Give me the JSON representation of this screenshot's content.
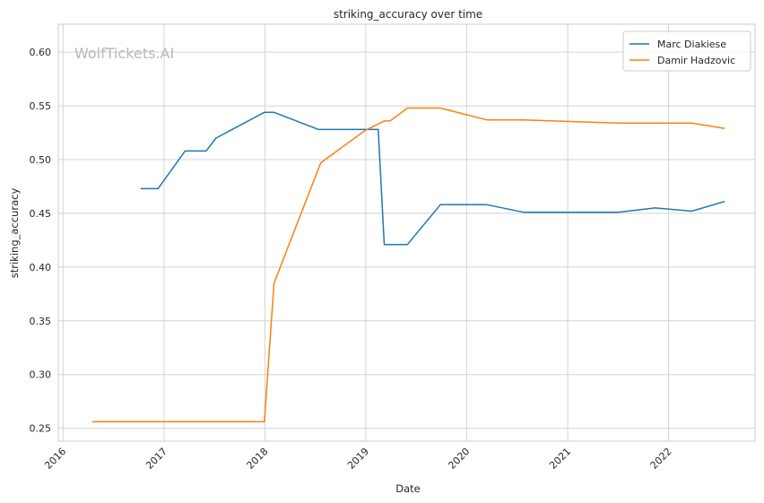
{
  "watermark": "WolfTickets.AI",
  "chart_data": {
    "type": "line",
    "title": "striking_accuracy over time",
    "xlabel": "Date",
    "ylabel": "striking_accuracy",
    "xlim": [
      "2015-12-15",
      "2022-11-10"
    ],
    "ylim": [
      0.238,
      0.626
    ],
    "x_ticks": [
      "2016",
      "2017",
      "2018",
      "2019",
      "2020",
      "2021",
      "2022"
    ],
    "y_ticks": [
      "0.25",
      "0.30",
      "0.35",
      "0.40",
      "0.45",
      "0.50",
      "0.55",
      "0.60"
    ],
    "grid": true,
    "legend_position": "top-right",
    "series": [
      {
        "name": "Marc Diakiese",
        "color": "#1f77b4",
        "points": [
          [
            "2016-10-08",
            0.473
          ],
          [
            "2016-12-10",
            0.473
          ],
          [
            "2017-03-18",
            0.508
          ],
          [
            "2017-06-02",
            0.508
          ],
          [
            "2017-07-08",
            0.52
          ],
          [
            "2017-12-30",
            0.544
          ],
          [
            "2018-02-03",
            0.544
          ],
          [
            "2018-07-14",
            0.528
          ],
          [
            "2019-02-15",
            0.528
          ],
          [
            "2019-03-09",
            0.421
          ],
          [
            "2019-06-01",
            0.421
          ],
          [
            "2019-09-28",
            0.458
          ],
          [
            "2020-03-14",
            0.458
          ],
          [
            "2020-07-25",
            0.451
          ],
          [
            "2021-07-03",
            0.451
          ],
          [
            "2021-11-13",
            0.455
          ],
          [
            "2022-03-26",
            0.452
          ],
          [
            "2022-07-23",
            0.461
          ]
        ]
      },
      {
        "name": "Damir Hadzovic",
        "color": "#ff7f0e",
        "points": [
          [
            "2016-04-16",
            0.256
          ],
          [
            "2017-12-30",
            0.256
          ],
          [
            "2018-02-03",
            0.385
          ],
          [
            "2018-07-22",
            0.497
          ],
          [
            "2018-12-29",
            0.527
          ],
          [
            "2019-03-09",
            0.536
          ],
          [
            "2019-03-30",
            0.536
          ],
          [
            "2019-06-01",
            0.548
          ],
          [
            "2019-09-28",
            0.548
          ],
          [
            "2020-03-14",
            0.537
          ],
          [
            "2020-07-25",
            0.537
          ],
          [
            "2021-07-03",
            0.534
          ],
          [
            "2022-03-26",
            0.534
          ],
          [
            "2022-07-23",
            0.529
          ]
        ]
      }
    ]
  }
}
